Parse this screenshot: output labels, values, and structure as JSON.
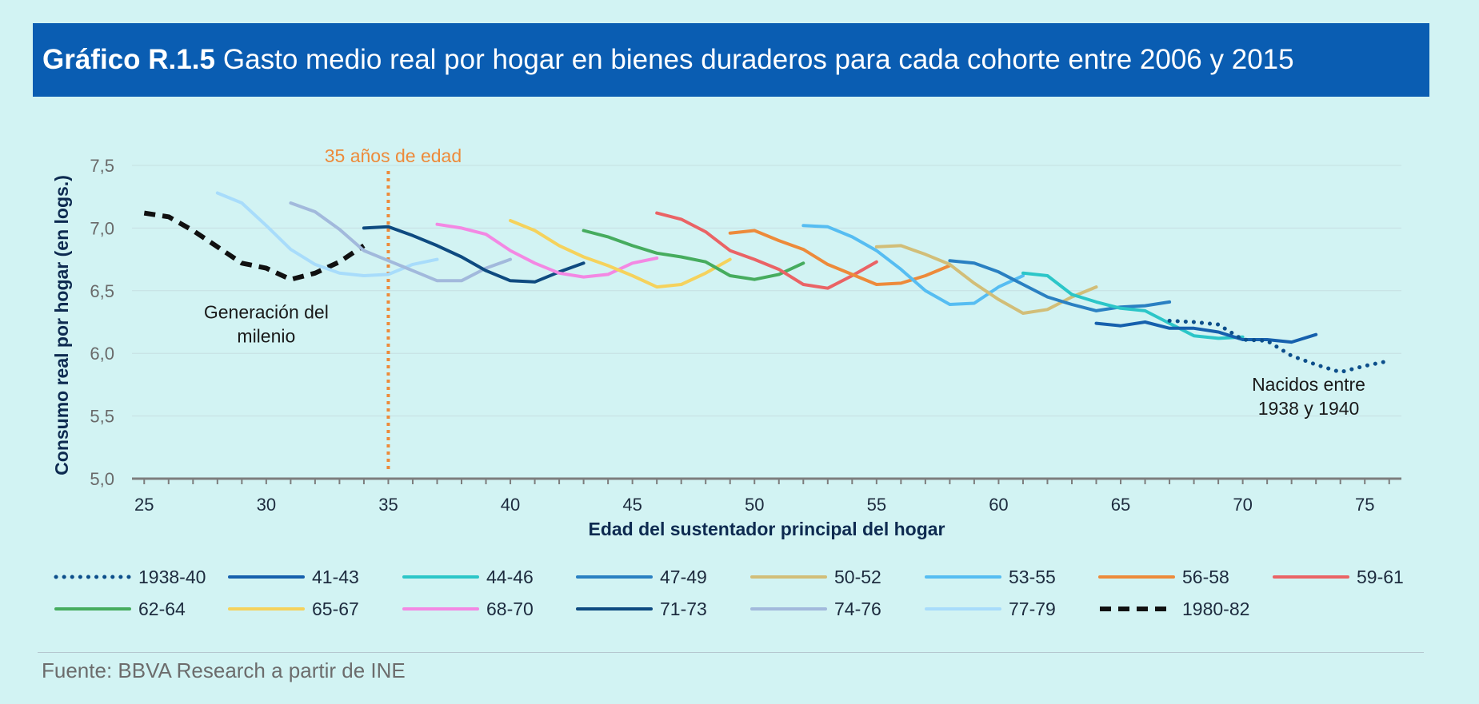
{
  "header": {
    "lead": "Gráfico R.1.5",
    "title": "Gasto medio real por hogar en bienes duraderos para cada cohorte entre 2006 y 2015"
  },
  "source": "Fuente: BBVA Research a partir de INE",
  "chart_data": {
    "type": "line",
    "xlabel": "Edad del sustentador principal del hogar",
    "ylabel": "Consumo real por hogar (en logs.)",
    "xlim": [
      24.5,
      76.5
    ],
    "ylim": [
      5.0,
      7.5
    ],
    "xticks": [
      25,
      30,
      35,
      40,
      45,
      50,
      55,
      60,
      65,
      70,
      75
    ],
    "yticks": [
      5.0,
      5.5,
      6.0,
      6.5,
      7.0,
      7.5
    ],
    "ytick_labels": [
      "5,0",
      "5,5",
      "6,0",
      "6,5",
      "7,0",
      "7,5"
    ],
    "grid": "horizontal",
    "legend_position": "bottom",
    "vline": {
      "x": 35,
      "label": "35 años de edad",
      "color": "#ed8a3a"
    },
    "annotations": [
      {
        "lines": [
          "Generación del",
          "milenio"
        ],
        "x": 30,
        "y": 6.28
      },
      {
        "lines": [
          "Nacidos entre",
          "1938 y 1940"
        ],
        "x": 72.7,
        "y": 5.7
      }
    ],
    "series": [
      {
        "name": "1938-40",
        "color": "#0d4f8b",
        "style": "dotted",
        "x": [
          67,
          68,
          69,
          70,
          71,
          72,
          73,
          74,
          75,
          76
        ],
        "y": [
          6.26,
          6.25,
          6.23,
          6.11,
          6.1,
          5.98,
          5.91,
          5.85,
          5.9,
          5.94
        ]
      },
      {
        "name": "41-43",
        "color": "#1660ad",
        "style": "solid",
        "x": [
          64,
          65,
          66,
          67,
          68,
          69,
          70,
          71,
          72,
          73
        ],
        "y": [
          6.24,
          6.22,
          6.25,
          6.2,
          6.2,
          6.17,
          6.11,
          6.11,
          6.09,
          6.15
        ]
      },
      {
        "name": "44-46",
        "color": "#2cc6c8",
        "style": "solid",
        "x": [
          61,
          62,
          63,
          64,
          65,
          66,
          67,
          68,
          69,
          70
        ],
        "y": [
          6.64,
          6.62,
          6.47,
          6.41,
          6.36,
          6.34,
          6.24,
          6.14,
          6.12,
          6.13
        ]
      },
      {
        "name": "47-49",
        "color": "#2a80c2",
        "style": "solid",
        "x": [
          58,
          59,
          60,
          61,
          62,
          63,
          64,
          65,
          66,
          67
        ],
        "y": [
          6.74,
          6.72,
          6.65,
          6.55,
          6.45,
          6.39,
          6.34,
          6.37,
          6.38,
          6.41
        ]
      },
      {
        "name": "50-52",
        "color": "#d2be78",
        "style": "solid",
        "x": [
          55,
          56,
          57,
          58,
          59,
          60,
          61,
          62,
          63,
          64
        ],
        "y": [
          6.85,
          6.86,
          6.79,
          6.71,
          6.56,
          6.43,
          6.32,
          6.35,
          6.45,
          6.53
        ]
      },
      {
        "name": "53-55",
        "color": "#56bdf2",
        "style": "solid",
        "x": [
          52,
          53,
          54,
          55,
          56,
          57,
          58,
          59,
          60,
          61
        ],
        "y": [
          7.02,
          7.01,
          6.93,
          6.82,
          6.67,
          6.5,
          6.39,
          6.4,
          6.53,
          6.62
        ]
      },
      {
        "name": "56-58",
        "color": "#ed8a3a",
        "style": "solid",
        "x": [
          49,
          50,
          51,
          52,
          53,
          54,
          55,
          56,
          57,
          58
        ],
        "y": [
          6.96,
          6.98,
          6.9,
          6.83,
          6.71,
          6.63,
          6.55,
          6.56,
          6.62,
          6.7
        ]
      },
      {
        "name": "59-61",
        "color": "#ea6365",
        "style": "solid",
        "x": [
          46,
          47,
          48,
          49,
          50,
          51,
          52,
          53,
          54,
          55
        ],
        "y": [
          7.12,
          7.07,
          6.97,
          6.82,
          6.75,
          6.67,
          6.55,
          6.52,
          6.62,
          6.73
        ]
      },
      {
        "name": "62-64",
        "color": "#46ac5e",
        "style": "solid",
        "x": [
          43,
          44,
          45,
          46,
          47,
          48,
          49,
          50,
          51,
          52
        ],
        "y": [
          6.98,
          6.93,
          6.86,
          6.8,
          6.77,
          6.73,
          6.62,
          6.59,
          6.63,
          6.72
        ]
      },
      {
        "name": "65-67",
        "color": "#f5d25c",
        "style": "solid",
        "x": [
          40,
          41,
          42,
          43,
          44,
          45,
          46,
          47,
          48,
          49
        ],
        "y": [
          7.06,
          6.98,
          6.86,
          6.77,
          6.7,
          6.62,
          6.53,
          6.55,
          6.64,
          6.75
        ]
      },
      {
        "name": "68-70",
        "color": "#f388e3",
        "style": "solid",
        "x": [
          37,
          38,
          39,
          40,
          41,
          42,
          43,
          44,
          45,
          46
        ],
        "y": [
          7.03,
          7.0,
          6.95,
          6.82,
          6.72,
          6.64,
          6.61,
          6.63,
          6.72,
          6.76
        ]
      },
      {
        "name": "71-73",
        "color": "#0e4a80",
        "style": "solid",
        "x": [
          34,
          35,
          36,
          37,
          38,
          39,
          40,
          41,
          42,
          43
        ],
        "y": [
          7.0,
          7.01,
          6.94,
          6.86,
          6.77,
          6.66,
          6.58,
          6.57,
          6.65,
          6.72
        ]
      },
      {
        "name": "74-76",
        "color": "#a2b9dc",
        "style": "solid",
        "x": [
          31,
          32,
          33,
          34,
          35,
          36,
          37,
          38,
          39,
          40
        ],
        "y": [
          7.2,
          7.13,
          6.99,
          6.82,
          6.74,
          6.66,
          6.58,
          6.58,
          6.68,
          6.75
        ]
      },
      {
        "name": "77-79",
        "color": "#a8dcfb",
        "style": "solid",
        "x": [
          28,
          29,
          30,
          31,
          32,
          33,
          34,
          35,
          36,
          37
        ],
        "y": [
          7.28,
          7.2,
          7.02,
          6.83,
          6.71,
          6.64,
          6.62,
          6.63,
          6.71,
          6.75
        ]
      },
      {
        "name": "1980-82",
        "color": "#111111",
        "style": "dashed",
        "x": [
          25,
          26,
          27,
          28,
          29,
          30,
          31,
          32,
          33,
          34
        ],
        "y": [
          7.12,
          7.09,
          6.98,
          6.85,
          6.72,
          6.68,
          6.59,
          6.64,
          6.73,
          6.86
        ]
      }
    ]
  }
}
